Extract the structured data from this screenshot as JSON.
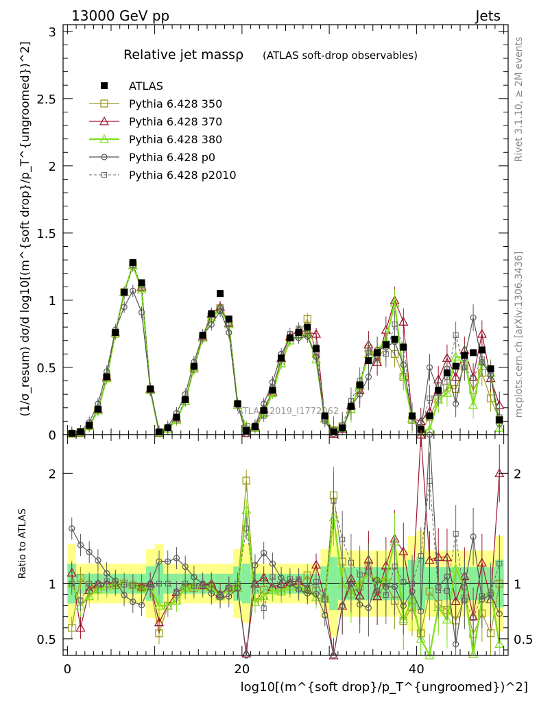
{
  "header": {
    "left": "13000 GeV pp",
    "right": "Jets"
  },
  "side_labels": {
    "rivet": "Rivet 3.1.10, ≥ 2M events",
    "mcplots": "mcplots.cern.ch [arXiv:1306.3436]"
  },
  "chart_data": {
    "type": "line",
    "title": "Relative jet massρ",
    "subtitle": "(ATLAS soft-drop observables)",
    "watermark": "ATLAS_2019_I1772062",
    "xlabel": "log10[(m^{soft drop}/p_T^{ungroomed})^2]",
    "ylabel_main": "(1/σ_resum) dσ/d log10[(m^{soft drop}/p_T^{ungroomed})^2]",
    "ylabel_ratio": "Ratio to ATLAS",
    "xlim": [
      -0.5,
      50.5
    ],
    "ylim_main": [
      0,
      3.05
    ],
    "ylim_ratio": [
      0.35,
      2.35
    ],
    "x_ticks": [
      0,
      20,
      40
    ],
    "y_ticks_main": [
      "0",
      "0.5",
      "1",
      "1.5",
      "2",
      "2.5",
      "3"
    ],
    "y_ticks_ratio": [
      "0.5",
      "1",
      "2"
    ],
    "legend_position": "top-left",
    "x": [
      0.5,
      1.5,
      2.5,
      3.5,
      4.5,
      5.5,
      6.5,
      7.5,
      8.5,
      9.5,
      10.5,
      11.5,
      12.5,
      13.5,
      14.5,
      15.5,
      16.5,
      17.5,
      18.5,
      19.5,
      20.5,
      21.5,
      22.5,
      23.5,
      24.5,
      25.5,
      26.5,
      27.5,
      28.5,
      29.5,
      30.5,
      31.5,
      32.5,
      33.5,
      34.5,
      35.5,
      36.5,
      37.5,
      38.5,
      39.5,
      40.5,
      41.5,
      42.5,
      43.5,
      44.5,
      45.5,
      46.5,
      47.5,
      48.5,
      49.5
    ],
    "series": [
      {
        "name": "ATLAS",
        "color": "#000000",
        "values": [
          0.01,
          0.02,
          0.07,
          0.19,
          0.43,
          0.76,
          1.06,
          1.28,
          1.13,
          0.34,
          0.02,
          0.05,
          0.13,
          0.26,
          0.51,
          0.74,
          0.9,
          1.05,
          0.86,
          0.23,
          0.03,
          0.06,
          0.18,
          0.33,
          0.57,
          0.72,
          0.76,
          0.8,
          0.64,
          0.14,
          0.02,
          0.05,
          0.21,
          0.37,
          0.55,
          0.61,
          0.67,
          0.71,
          0.65,
          0.14,
          0.04,
          0.14,
          0.33,
          0.46,
          0.51,
          0.59,
          0.61,
          0.63,
          0.49,
          0.11
        ]
      },
      {
        "name": "Pythia 6.428 350",
        "color": "#9a9a1f",
        "values": [
          0.006,
          0.021,
          0.068,
          0.18,
          0.42,
          0.75,
          1.06,
          1.26,
          1.09,
          0.33,
          0.011,
          0.04,
          0.11,
          0.25,
          0.49,
          0.72,
          0.88,
          0.94,
          0.82,
          0.22,
          0.058,
          0.05,
          0.17,
          0.31,
          0.53,
          0.7,
          0.74,
          0.86,
          0.6,
          0.12,
          0.036,
          0.06,
          0.19,
          0.36,
          0.64,
          0.54,
          0.67,
          0.6,
          0.43,
          0.11,
          0.022,
          0.13,
          0.27,
          0.35,
          0.34,
          0.51,
          0.33,
          0.46,
          0.27,
          0.11
        ]
      },
      {
        "name": "Pythia 6.428 370",
        "color": "#a0142e",
        "values": [
          0.011,
          0.012,
          0.066,
          0.19,
          0.43,
          0.76,
          1.06,
          1.26,
          1.1,
          0.34,
          0.013,
          0.04,
          0.12,
          0.25,
          0.5,
          0.73,
          0.9,
          0.95,
          0.83,
          0.22,
          0.011,
          0.06,
          0.19,
          0.32,
          0.57,
          0.73,
          0.78,
          0.76,
          0.75,
          0.12,
          0.004,
          0.04,
          0.22,
          0.33,
          0.67,
          0.54,
          0.78,
          1.0,
          0.84,
          0.12,
          0.1,
          0.17,
          0.41,
          0.57,
          0.43,
          0.63,
          0.43,
          0.75,
          0.42,
          0.22
        ]
      },
      {
        "name": "Pythia 6.428 380",
        "color": "#80e020",
        "values": [
          0.01,
          0.016,
          0.062,
          0.18,
          0.42,
          0.76,
          1.06,
          1.26,
          1.08,
          0.33,
          0.016,
          0.04,
          0.11,
          0.25,
          0.5,
          0.72,
          0.87,
          0.93,
          0.82,
          0.22,
          0.05,
          0.05,
          0.16,
          0.31,
          0.53,
          0.7,
          0.74,
          0.75,
          0.56,
          0.12,
          0.032,
          0.05,
          0.19,
          0.37,
          0.6,
          0.63,
          0.7,
          0.98,
          0.44,
          0.12,
          0.02,
          0.04,
          0.26,
          0.31,
          0.58,
          0.57,
          0.22,
          0.54,
          0.46,
          0.05
        ]
      },
      {
        "name": "Pythia 6.428 p0",
        "color": "#555555",
        "values": [
          0.015,
          0.027,
          0.09,
          0.23,
          0.47,
          0.78,
          0.95,
          1.07,
          0.91,
          0.34,
          0.024,
          0.06,
          0.16,
          0.3,
          0.54,
          0.74,
          0.82,
          0.92,
          0.76,
          0.22,
          0.006,
          0.07,
          0.23,
          0.39,
          0.6,
          0.72,
          0.72,
          0.73,
          0.58,
          0.1,
          0.005,
          0.04,
          0.21,
          0.3,
          0.43,
          0.63,
          0.65,
          0.69,
          0.52,
          0.13,
          0.03,
          0.5,
          0.32,
          0.49,
          0.23,
          0.57,
          0.87,
          0.54,
          0.44,
          0.08
        ]
      },
      {
        "name": "Pythia 6.428 p2010",
        "color": "#666666",
        "values": [
          0.01,
          0.017,
          0.07,
          0.19,
          0.44,
          0.76,
          1.05,
          1.26,
          1.11,
          0.33,
          0.02,
          0.05,
          0.12,
          0.26,
          0.5,
          0.73,
          0.89,
          0.94,
          0.83,
          0.23,
          0.045,
          0.06,
          0.14,
          0.35,
          0.56,
          0.75,
          0.79,
          0.77,
          0.65,
          0.12,
          0.035,
          0.07,
          0.25,
          0.4,
          0.61,
          0.57,
          0.6,
          0.82,
          0.66,
          0.14,
          0.05,
          0.27,
          0.31,
          0.43,
          0.74,
          0.5,
          0.42,
          0.56,
          0.45,
          0.13
        ]
      }
    ]
  }
}
